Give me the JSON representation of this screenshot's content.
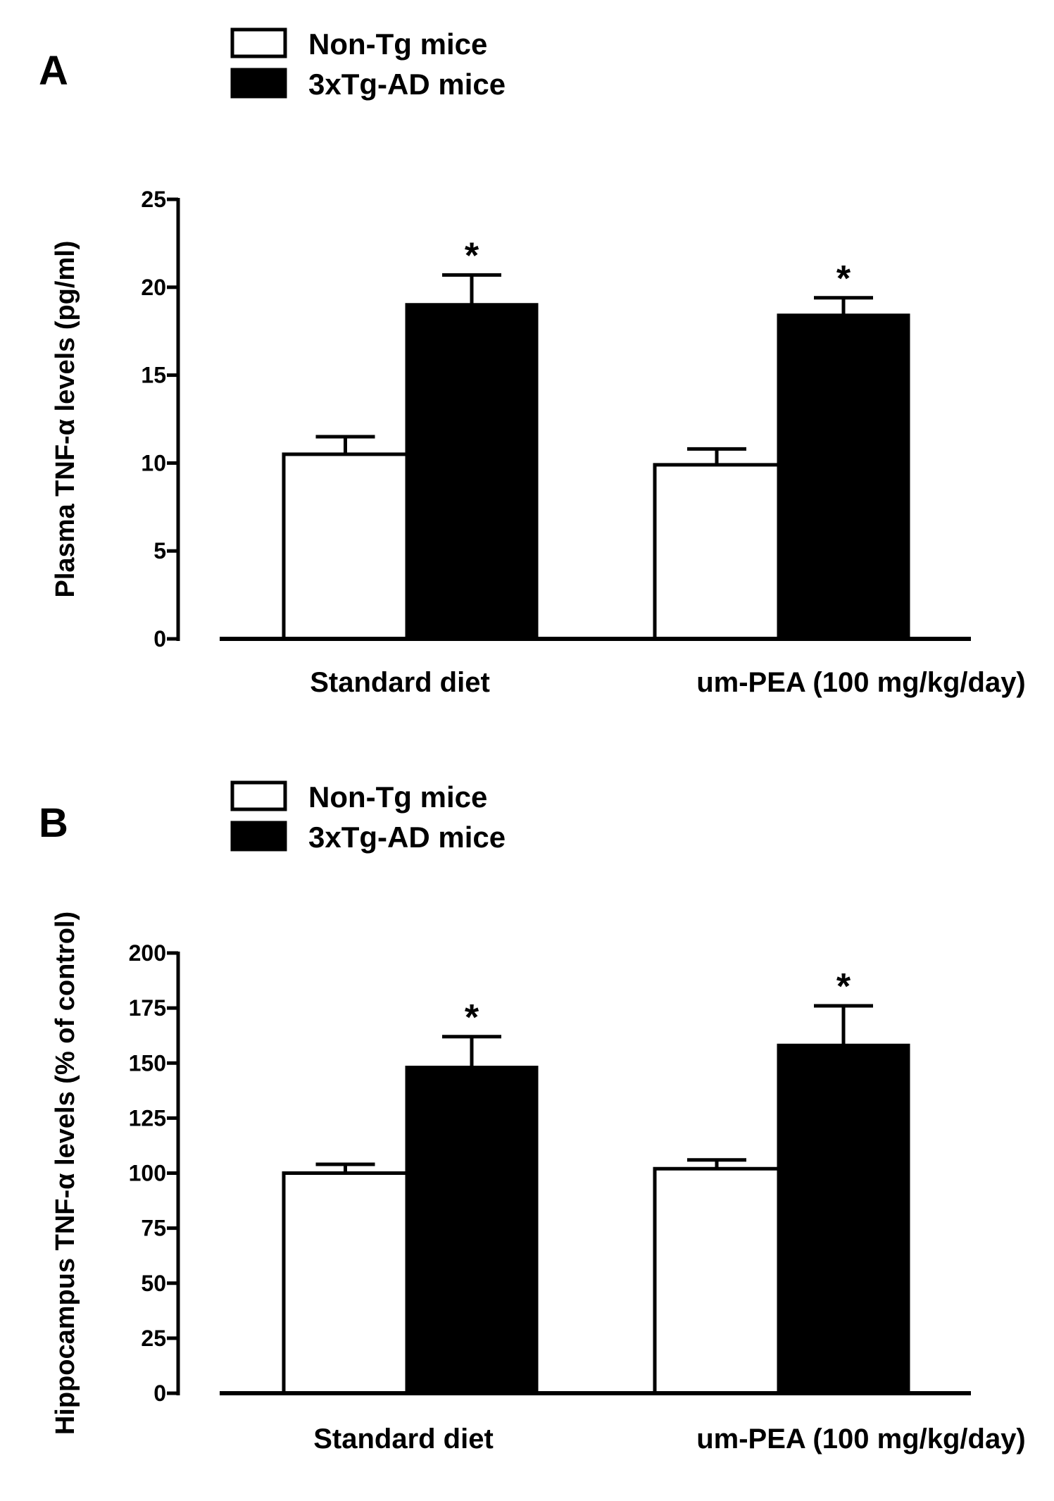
{
  "chart_data": [
    {
      "type": "bar",
      "panel": "A",
      "legend": [
        {
          "label": "Non-Tg mice",
          "fill": "#ffffff"
        },
        {
          "label": "3xTg-AD mice",
          "fill": "#000000"
        }
      ],
      "ylabel": "Plasma TNF-α levels (pg/ml)",
      "xlabel": "",
      "ylim": [
        0,
        25
      ],
      "yticks": [
        0,
        5,
        10,
        15,
        20,
        25
      ],
      "categories": [
        "Standard diet",
        "um-PEA (100 mg/kg/day)"
      ],
      "series": [
        {
          "name": "Non-Tg mice",
          "values": [
            10.5,
            9.9
          ],
          "errors": [
            1.0,
            0.9
          ]
        },
        {
          "name": "3xTg-AD mice",
          "values": [
            19.0,
            18.4
          ],
          "errors": [
            1.7,
            1.0
          ]
        }
      ],
      "significance": [
        {
          "series": "3xTg-AD mice",
          "category": 0,
          "mark": "*"
        },
        {
          "series": "3xTg-AD mice",
          "category": 1,
          "mark": "*"
        }
      ]
    },
    {
      "type": "bar",
      "panel": "B",
      "legend": [
        {
          "label": "Non-Tg mice",
          "fill": "#ffffff"
        },
        {
          "label": "3xTg-AD mice",
          "fill": "#000000"
        }
      ],
      "ylabel": "Hippocampus TNF-α levels (% of control)",
      "xlabel": "",
      "ylim": [
        0,
        200
      ],
      "yticks": [
        0,
        25,
        50,
        75,
        100,
        125,
        150,
        175,
        200
      ],
      "categories": [
        "Standard diet",
        "um-PEA (100 mg/kg/day)"
      ],
      "series": [
        {
          "name": "Non-Tg mice",
          "values": [
            100,
            102
          ],
          "errors": [
            4,
            4
          ]
        },
        {
          "name": "3xTg-AD mice",
          "values": [
            148,
            158
          ],
          "errors": [
            14,
            18
          ]
        }
      ],
      "significance": [
        {
          "series": "3xTg-AD mice",
          "category": 0,
          "mark": "*"
        },
        {
          "series": "3xTg-AD mice",
          "category": 1,
          "mark": "*"
        }
      ]
    }
  ]
}
